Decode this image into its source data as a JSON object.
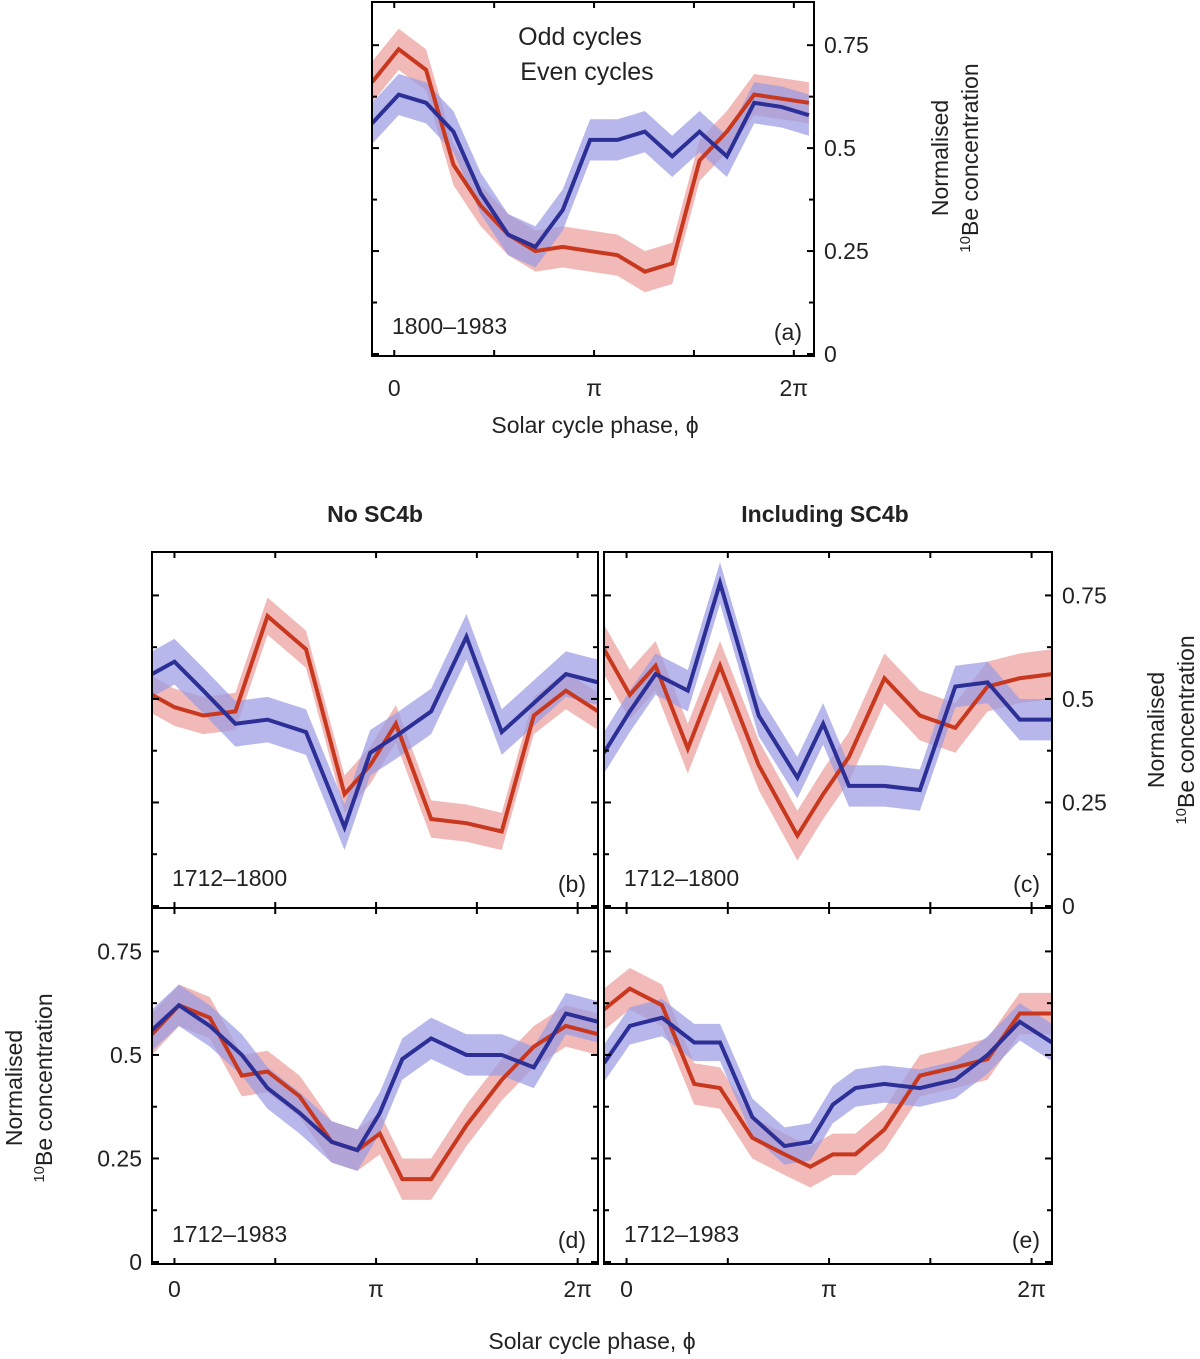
{
  "figure": {
    "column_titles": [
      "No SC4b",
      "Including SC4b"
    ],
    "legend": {
      "odd": "Odd cycles",
      "even": "Even cycles"
    },
    "colors": {
      "odd": "#c8381e",
      "odd_band": "#eb9e9d",
      "even": "#2c2f96",
      "even_band": "#9b9be3",
      "axis": "#000000",
      "text": "#222222"
    },
    "x_axis_title": "Solar cycle phase, ϕ",
    "y_axis_title_line1": "Normalised",
    "y_axis_title_line2_sup": "10",
    "y_axis_title_line2_rest": "Be concentration",
    "x_tick_labels": [
      "0",
      "π",
      "2π"
    ],
    "y_tick_labels": [
      "0",
      "0.25",
      "0.5",
      "0.75"
    ]
  },
  "chart_data": [
    {
      "type": "line",
      "panel": "(a)",
      "period": "1800–1983",
      "xlabel": "Solar cycle phase, ϕ",
      "ylabel": "Normalised 10Be concentration",
      "xlim": [
        -0.35,
        6.6
      ],
      "ylim": [
        0,
        0.85
      ],
      "xticks": [
        0,
        3.1416,
        6.2832
      ],
      "yticks": [
        0,
        0.25,
        0.5,
        0.75
      ],
      "x": [
        -0.35,
        0.07,
        0.5,
        0.93,
        1.36,
        1.79,
        2.22,
        2.65,
        3.08,
        3.51,
        3.94,
        4.37,
        4.8,
        5.23,
        5.66,
        6.09,
        6.52
      ],
      "series": [
        {
          "name": "Odd cycles",
          "values": [
            0.66,
            0.74,
            0.69,
            0.46,
            0.36,
            0.29,
            0.25,
            0.26,
            0.25,
            0.24,
            0.2,
            0.22,
            0.47,
            0.54,
            0.63,
            0.62,
            0.61
          ],
          "band": 0.05
        },
        {
          "name": "Even cycles",
          "values": [
            0.56,
            0.63,
            0.61,
            0.54,
            0.39,
            0.29,
            0.26,
            0.35,
            0.52,
            0.52,
            0.54,
            0.48,
            0.54,
            0.48,
            0.61,
            0.6,
            0.58
          ],
          "band": 0.05
        }
      ]
    },
    {
      "type": "line",
      "panel": "(b)",
      "period": "1712–1800",
      "column": "No SC4b",
      "xlim": [
        -0.35,
        6.6
      ],
      "ylim": [
        0,
        0.85
      ],
      "x": [
        -0.35,
        0.0,
        0.45,
        0.95,
        1.45,
        2.05,
        2.65,
        3.05,
        3.45,
        4.0,
        4.55,
        5.1,
        5.6,
        6.1,
        6.6
      ],
      "series": [
        {
          "name": "Odd cycles",
          "values": [
            0.51,
            0.48,
            0.46,
            0.47,
            0.7,
            0.62,
            0.27,
            0.34,
            0.44,
            0.21,
            0.2,
            0.18,
            0.46,
            0.52,
            0.47
          ],
          "band": 0.045
        },
        {
          "name": "Even cycles",
          "values": [
            0.56,
            0.59,
            0.52,
            0.44,
            0.45,
            0.42,
            0.19,
            0.37,
            0.41,
            0.47,
            0.65,
            0.42,
            0.49,
            0.56,
            0.54
          ],
          "band": 0.055
        }
      ]
    },
    {
      "type": "line",
      "panel": "(c)",
      "period": "1712–1800",
      "column": "Including SC4b",
      "xlim": [
        -0.35,
        6.6
      ],
      "ylim": [
        0,
        0.85
      ],
      "yticks": [
        0,
        0.25,
        0.5,
        0.75
      ],
      "x": [
        -0.35,
        0.05,
        0.45,
        0.95,
        1.45,
        2.05,
        2.65,
        3.05,
        3.45,
        4.0,
        4.55,
        5.1,
        5.6,
        6.1,
        6.6
      ],
      "series": [
        {
          "name": "Odd cycles",
          "values": [
            0.62,
            0.51,
            0.58,
            0.38,
            0.58,
            0.34,
            0.17,
            0.27,
            0.36,
            0.55,
            0.46,
            0.43,
            0.53,
            0.55,
            0.56
          ],
          "band": 0.06
        },
        {
          "name": "Even cycles",
          "values": [
            0.37,
            0.47,
            0.56,
            0.52,
            0.78,
            0.46,
            0.31,
            0.44,
            0.29,
            0.29,
            0.28,
            0.53,
            0.54,
            0.45,
            0.45
          ],
          "band": 0.05
        }
      ]
    },
    {
      "type": "line",
      "panel": "(d)",
      "period": "1712–1983",
      "column": "No SC4b",
      "xlim": [
        -0.35,
        6.6
      ],
      "ylim": [
        0,
        0.85
      ],
      "xticks": [
        0,
        3.1416,
        6.2832
      ],
      "yticks": [
        0,
        0.25,
        0.5,
        0.75
      ],
      "x": [
        -0.35,
        0.07,
        0.55,
        1.05,
        1.45,
        1.95,
        2.45,
        2.85,
        3.2,
        3.55,
        4.0,
        4.55,
        5.1,
        5.6,
        6.1,
        6.6
      ],
      "series": [
        {
          "name": "Odd cycles",
          "values": [
            0.55,
            0.62,
            0.59,
            0.45,
            0.46,
            0.4,
            0.29,
            0.27,
            0.31,
            0.2,
            0.2,
            0.33,
            0.44,
            0.52,
            0.57,
            0.55
          ],
          "band": 0.05
        },
        {
          "name": "Even cycles",
          "values": [
            0.56,
            0.62,
            0.57,
            0.5,
            0.42,
            0.36,
            0.29,
            0.27,
            0.36,
            0.49,
            0.54,
            0.5,
            0.5,
            0.47,
            0.6,
            0.58
          ],
          "band": 0.05
        }
      ]
    },
    {
      "type": "line",
      "panel": "(e)",
      "period": "1712–1983",
      "column": "Including SC4b",
      "xlim": [
        -0.35,
        6.6
      ],
      "ylim": [
        0,
        0.85
      ],
      "xticks": [
        0,
        3.1416,
        6.2832
      ],
      "x": [
        -0.35,
        0.05,
        0.55,
        1.05,
        1.45,
        1.95,
        2.45,
        2.85,
        3.2,
        3.55,
        4.0,
        4.55,
        5.1,
        5.6,
        6.1,
        6.6
      ],
      "series": [
        {
          "name": "Odd cycles",
          "values": [
            0.61,
            0.66,
            0.62,
            0.43,
            0.42,
            0.3,
            0.26,
            0.23,
            0.26,
            0.26,
            0.32,
            0.45,
            0.47,
            0.49,
            0.6,
            0.6
          ],
          "band": 0.05
        },
        {
          "name": "Even cycles",
          "values": [
            0.48,
            0.57,
            0.59,
            0.53,
            0.53,
            0.35,
            0.28,
            0.29,
            0.38,
            0.42,
            0.43,
            0.42,
            0.44,
            0.5,
            0.58,
            0.53
          ],
          "band": 0.045
        }
      ]
    }
  ]
}
